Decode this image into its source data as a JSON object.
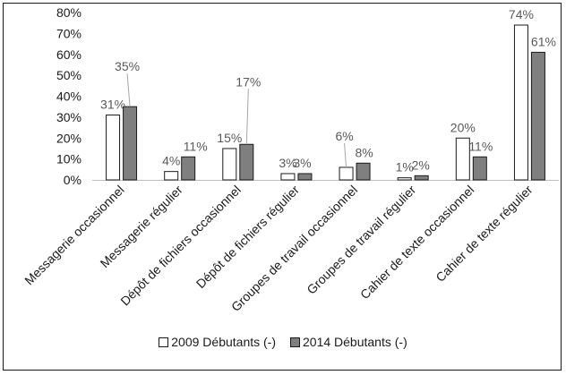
{
  "chart_data": {
    "type": "bar",
    "title": "",
    "xlabel": "",
    "ylabel": "",
    "ylim": [
      0,
      80
    ],
    "yticks": [
      "0%",
      "10%",
      "20%",
      "30%",
      "40%",
      "50%",
      "60%",
      "70%",
      "80%"
    ],
    "grid": false,
    "legend_position": "bottom",
    "categories": [
      "Messagerie occasionnel",
      "Messagerie régulier",
      "Dépôt de fichiers occasionnel",
      "Dépôt de fichiers régulier",
      "Groupes de travail occasionnel",
      "Groupes de travail régulier",
      "Cahier de texte occasionnel",
      "Cahier de texte régulier"
    ],
    "series": [
      {
        "name": "2009 Débutants (-)",
        "color": "#ffffff",
        "values": [
          31,
          4,
          15,
          3,
          6,
          1,
          20,
          74
        ],
        "labels": [
          "31%",
          "4%",
          "15%",
          "3%",
          "6%",
          "1%",
          "20%",
          "74%"
        ]
      },
      {
        "name": "2014 Débutants (-)",
        "color": "#7f7f7f",
        "values": [
          35,
          11,
          17,
          3,
          8,
          2,
          11,
          61
        ],
        "labels": [
          "35%",
          "11%",
          "17%",
          "3%",
          "8%",
          "2%",
          "11%",
          "61%"
        ]
      }
    ]
  }
}
